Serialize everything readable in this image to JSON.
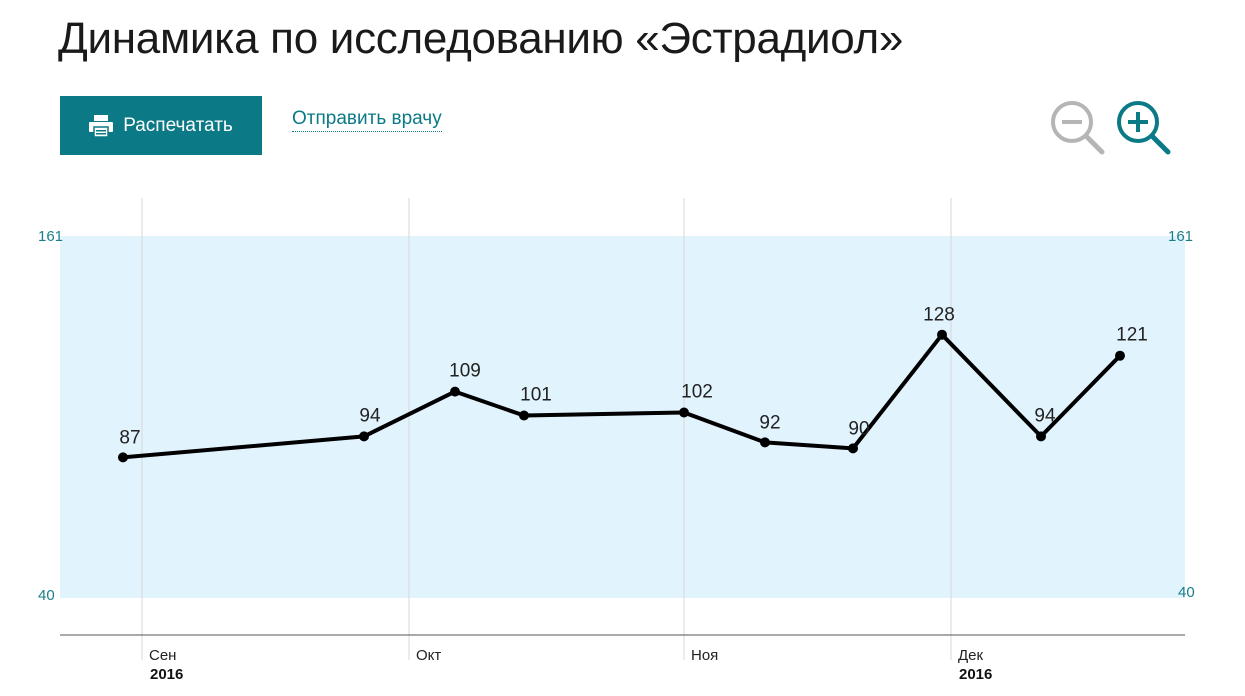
{
  "header": {
    "title": "Динамика по исследованию «Эстрадиол»",
    "print_label": "Распечатать",
    "send_label": "Отправить врачу"
  },
  "toolbar": {
    "zoom_out_icon": "zoom-out-icon",
    "zoom_in_icon": "zoom-in-icon"
  },
  "colors": {
    "accent": "#0b7a86",
    "range_band": "#e1f3fd",
    "line": "#000000",
    "zoom_out": "#b5b5b5"
  },
  "chart_data": {
    "type": "line",
    "title": "",
    "xlabel": "",
    "ylabel": "",
    "values": [
      87,
      94,
      109,
      101,
      102,
      92,
      90,
      128,
      94,
      121
    ],
    "value_labels": [
      "87",
      "94",
      "109",
      "101",
      "102",
      "92",
      "90",
      "128",
      "94",
      "121"
    ],
    "reference_range": {
      "low": 40,
      "high": 161
    },
    "y_ticks_left": [
      "161",
      "40"
    ],
    "y_ticks_right": [
      "161",
      "40"
    ],
    "months": [
      {
        "label": "Сен",
        "year": "2016"
      },
      {
        "label": "Окт",
        "year": ""
      },
      {
        "label": "Ноя",
        "year": ""
      },
      {
        "label": "Дек",
        "year": "2016"
      }
    ],
    "grid": true
  }
}
